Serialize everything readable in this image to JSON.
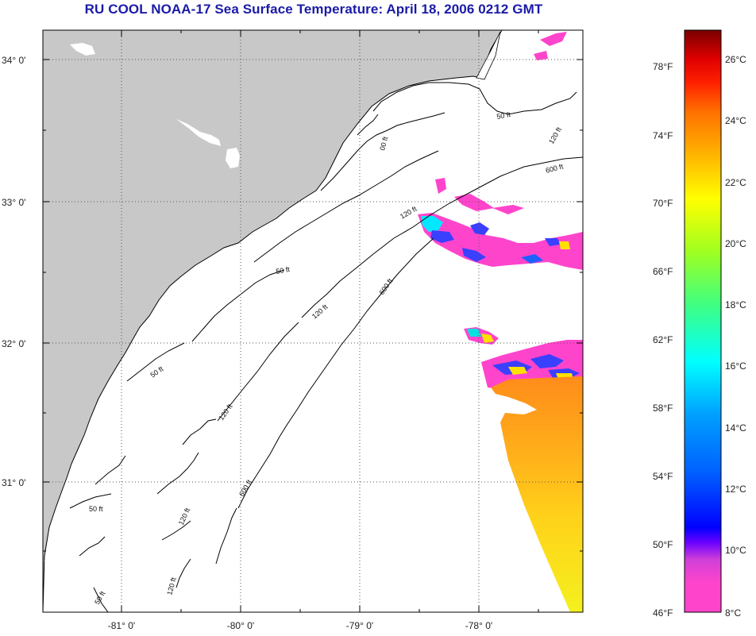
{
  "title": "RU COOL  NOAA-17  Sea Surface Temperature:  April 18, 2006 0212 GMT",
  "map": {
    "lat_labels": [
      "34° 0'",
      "33° 0'",
      "32° 0'",
      "31° 0'"
    ],
    "lon_labels": [
      "-81° 0'",
      "-80° 0'",
      "-79° 0'",
      "-78° 0'"
    ],
    "contour_labels": [
      {
        "text": "50 ft",
        "name": "contour-label-50ft-north"
      },
      {
        "text": "120 ft",
        "name": "contour-label-120ft-northeast"
      },
      {
        "text": "600 ft",
        "name": "contour-label-600ft-northeast"
      },
      {
        "text": "120 ft",
        "name": "contour-label-120ft-mid"
      },
      {
        "text": "50 ft",
        "name": "contour-label-50ft-mid"
      },
      {
        "text": "600 ft",
        "name": "contour-label-600ft-mid"
      },
      {
        "text": "120 ft",
        "name": "contour-label-120ft-central"
      },
      {
        "text": "50 ft",
        "name": "contour-label-50ft-central"
      },
      {
        "text": "120 ft",
        "name": "contour-label-120ft-south"
      },
      {
        "text": "600 ft",
        "name": "contour-label-600ft-south"
      },
      {
        "text": "50 ft",
        "name": "contour-label-50ft-south"
      },
      {
        "text": "120 ft",
        "name": "contour-label-120ft-southwest"
      },
      {
        "text": "120 ft",
        "name": "contour-label-120ft-bottom"
      },
      {
        "text": "50 ft",
        "name": "contour-label-50ft-bottom"
      },
      {
        "text": "00 ft",
        "name": "contour-label-00ft"
      }
    ],
    "colors": {
      "land": "#c8c8c8",
      "ocean": "#ffffff",
      "contour": "#000000",
      "grid": "#555555"
    }
  },
  "colorbar": {
    "fahrenheit_labels": [
      "78°F",
      "74°F",
      "70°F",
      "66°F",
      "62°F",
      "58°F",
      "54°F",
      "50°F",
      "46°F"
    ],
    "celsius_labels": [
      "26°C",
      "24°C",
      "22°C",
      "20°C",
      "18°C",
      "16°C",
      "14°C",
      "12°C",
      "10°C",
      "8°C"
    ],
    "range_celsius": [
      8,
      27
    ],
    "stops": [
      "#ff44cc",
      "#d040d8",
      "#6a00ff",
      "#0000ff",
      "#0060ff",
      "#00a0ff",
      "#00ffff",
      "#40ff80",
      "#a0ff20",
      "#ffff00",
      "#ffb000",
      "#ff7000",
      "#ff2000",
      "#e00000",
      "#7a0000"
    ]
  }
}
